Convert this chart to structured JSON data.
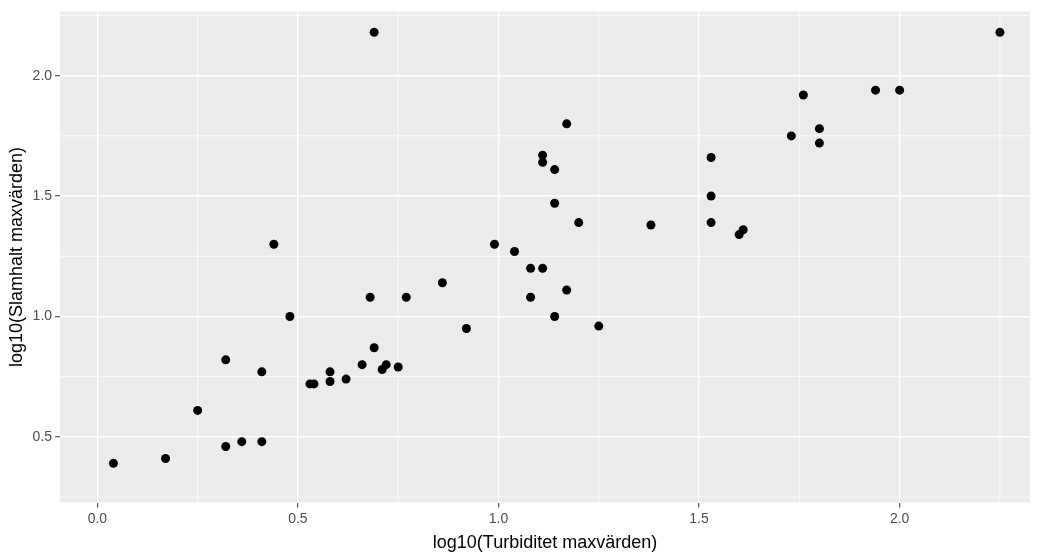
{
  "chart_data": {
    "type": "scatter",
    "xlabel": "log10(Turbiditet maxvärden)",
    "ylabel": "log10(Slamhalt maxvärden)",
    "xlim": [
      -0.093,
      2.325
    ],
    "ylim": [
      0.227,
      2.267
    ],
    "xticks": [
      {
        "value": 0,
        "label": "0.0"
      },
      {
        "value": 0.5,
        "label": "0.5"
      },
      {
        "value": 1,
        "label": "1.0"
      },
      {
        "value": 1.5,
        "label": "1.5"
      },
      {
        "value": 2,
        "label": "2.0"
      }
    ],
    "yticks": [
      {
        "value": 0.5,
        "label": "0.5"
      },
      {
        "value": 1,
        "label": "1.0"
      },
      {
        "value": 1.5,
        "label": "1.5"
      },
      {
        "value": 2,
        "label": "2.0"
      }
    ],
    "grid": true,
    "legend": false,
    "marker": "circle",
    "series": [
      {
        "color": "#000000",
        "x": [
          0.04,
          0.17,
          0.25,
          0.32,
          0.32,
          0.36,
          0.41,
          0.41,
          0.44,
          0.48,
          0.53,
          0.54,
          0.58,
          0.58,
          0.62,
          0.66,
          0.68,
          0.69,
          0.71,
          0.72,
          0.75,
          0.77,
          0.69,
          0.86,
          0.92,
          0.99,
          1.04,
          1.08,
          1.08,
          1.11,
          1.11,
          1.11,
          1.14,
          1.14,
          1.14,
          1.17,
          1.17,
          1.2,
          1.25,
          1.38,
          1.53,
          1.53,
          1.53,
          1.6,
          1.61,
          1.73,
          1.76,
          1.8,
          1.8,
          1.94,
          2.0,
          2.25
        ],
        "values": [
          0.39,
          0.41,
          0.61,
          0.46,
          0.82,
          0.48,
          0.48,
          0.77,
          1.3,
          1.0,
          0.72,
          0.72,
          0.77,
          0.73,
          0.74,
          0.8,
          1.08,
          0.87,
          0.78,
          0.8,
          0.79,
          1.08,
          2.18,
          1.14,
          0.95,
          1.3,
          1.27,
          1.2,
          1.08,
          1.2,
          1.67,
          1.64,
          1.61,
          1.47,
          1.0,
          1.8,
          1.11,
          1.39,
          0.96,
          1.38,
          1.66,
          1.5,
          1.39,
          1.34,
          1.36,
          1.75,
          1.92,
          1.72,
          1.78,
          1.94,
          1.94,
          2.18
        ]
      }
    ]
  }
}
